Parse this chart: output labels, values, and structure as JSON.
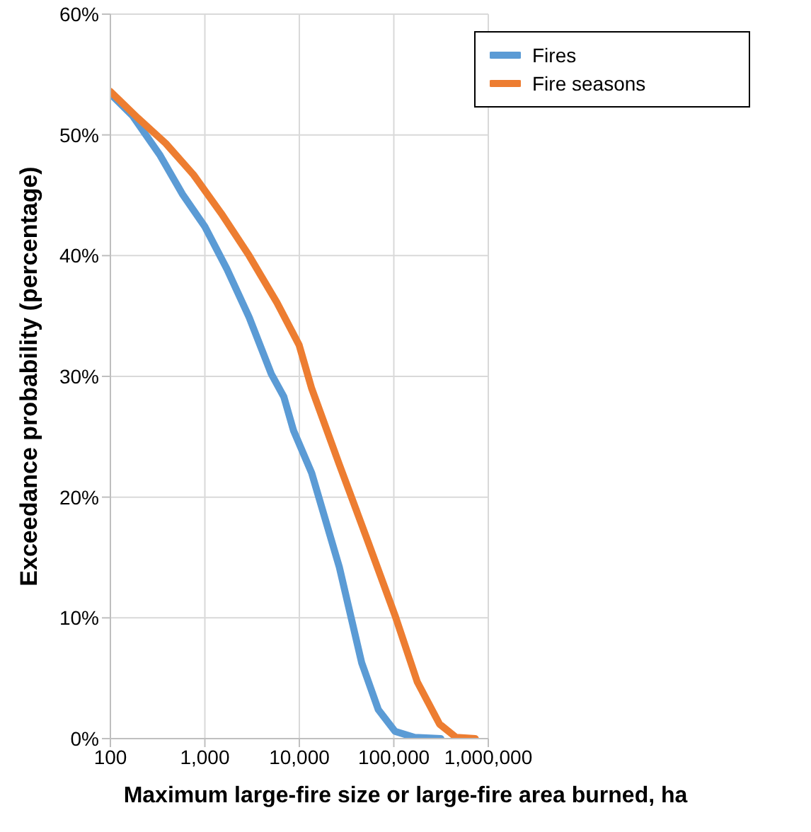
{
  "chart_data": {
    "type": "line",
    "xlabel": "Maximum large-fire size or large-fire area burned, ha",
    "ylabel": "Exceedance probability (percentage)",
    "log": "x",
    "grid": true,
    "legend": "top right",
    "marker": "none",
    "line_style": "solid",
    "xlim": [
      100,
      1000000
    ],
    "xticks": [
      {
        "value": 100,
        "label": "100"
      },
      {
        "value": 1000,
        "label": "1,000"
      },
      {
        "value": 10000,
        "label": "10,000"
      },
      {
        "value": 100000,
        "label": "100,000"
      },
      {
        "value": 1000000,
        "label": "1,000,000"
      }
    ],
    "ylim": [
      0,
      60
    ],
    "yticks": [
      {
        "value": 0,
        "label": "0%"
      },
      {
        "value": 10,
        "label": "10%"
      },
      {
        "value": 20,
        "label": "20%"
      },
      {
        "value": 30,
        "label": "30%"
      },
      {
        "value": 40,
        "label": "40%"
      },
      {
        "value": 50,
        "label": "50%"
      },
      {
        "value": 60,
        "label": "60%"
      }
    ],
    "series": [
      {
        "name": "Fires",
        "color": "#5b9bd5",
        "x": [
          100,
          171,
          336,
          578,
          1000,
          1710,
          2940,
          5050,
          6860,
          8690,
          13500,
          26500,
          45600,
          68500,
          103000,
          166000,
          315000
        ],
        "values": [
          53.4,
          51.6,
          48.3,
          45.1,
          42.4,
          38.9,
          34.9,
          30.2,
          28.3,
          25.5,
          22.0,
          14.2,
          6.3,
          2.4,
          0.6,
          0.1,
          0
        ]
      },
      {
        "name": "Fire seasons",
        "color": "#ed7d31",
        "x": [
          100,
          195,
          385,
          758,
          1490,
          2940,
          5800,
          9940,
          13500,
          26500,
          52200,
          103000,
          177000,
          305000,
          457000,
          729000
        ],
        "values": [
          53.6,
          51.4,
          49.3,
          46.7,
          43.5,
          40.0,
          36.1,
          32.6,
          29.0,
          22.7,
          16.5,
          10.2,
          4.7,
          1.2,
          0.1,
          0
        ]
      }
    ]
  }
}
